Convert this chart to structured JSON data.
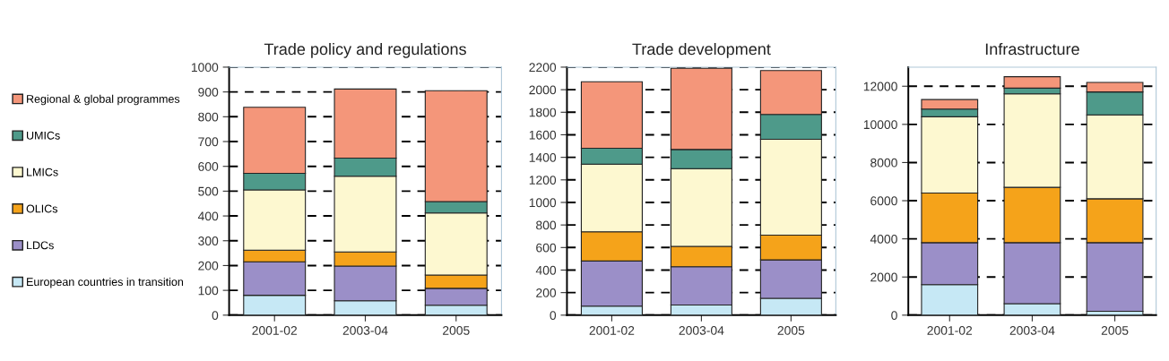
{
  "chart_data": [
    {
      "type": "bar",
      "title": "Trade policy and regulations",
      "categories": [
        "2001-02",
        "2003-04",
        "2005"
      ],
      "stacked": true,
      "ylim": [
        0,
        1000
      ],
      "yticks": [
        0,
        100,
        200,
        300,
        400,
        500,
        600,
        700,
        800,
        900,
        1000
      ],
      "grid": "y",
      "legend": "left",
      "series": [
        {
          "name": "European countries in transition",
          "color": "#c6e8f5",
          "values": [
            80,
            58,
            40
          ]
        },
        {
          "name": "LDCs",
          "color": "#9b8fc8",
          "values": [
            135,
            140,
            68
          ]
        },
        {
          "name": "OLICs",
          "color": "#f5a31a",
          "values": [
            47,
            57,
            54
          ]
        },
        {
          "name": "LMICs",
          "color": "#fdf8d0",
          "values": [
            243,
            305,
            250
          ]
        },
        {
          "name": "UMICs",
          "color": "#4e9a8a",
          "values": [
            67,
            73,
            46
          ]
        },
        {
          "name": "Regional & global programmes",
          "color": "#f4967a",
          "values": [
            266,
            279,
            447
          ]
        }
      ]
    },
    {
      "type": "bar",
      "title": "Trade development",
      "categories": [
        "2001-02",
        "2003-04",
        "2005"
      ],
      "stacked": true,
      "ylim": [
        0,
        2200
      ],
      "yticks": [
        0,
        200,
        400,
        600,
        800,
        1000,
        1200,
        1400,
        1600,
        1800,
        2000,
        2200
      ],
      "grid": "y",
      "series": [
        {
          "color": "#c6e8f5",
          "values": [
            80,
            90,
            150
          ]
        },
        {
          "color": "#9b8fc8",
          "values": [
            400,
            340,
            340
          ]
        },
        {
          "color": "#f5a31a",
          "values": [
            260,
            180,
            220
          ]
        },
        {
          "color": "#fdf8d0",
          "values": [
            600,
            690,
            850
          ]
        },
        {
          "color": "#4e9a8a",
          "values": [
            140,
            170,
            220
          ]
        },
        {
          "color": "#f4967a",
          "values": [
            590,
            720,
            390
          ]
        }
      ]
    },
    {
      "type": "bar",
      "title": "Infrastructure",
      "categories": [
        "2001-02",
        "2003-04",
        "2005"
      ],
      "stacked": true,
      "ylim": [
        0,
        13000
      ],
      "yticks": [
        0,
        2000,
        4000,
        6000,
        8000,
        10000,
        12000
      ],
      "grid": "y",
      "series": [
        {
          "color": "#c6e8f5",
          "values": [
            1600,
            600,
            200
          ]
        },
        {
          "color": "#9b8fc8",
          "values": [
            2200,
            3200,
            3600
          ]
        },
        {
          "color": "#f5a31a",
          "values": [
            2600,
            2900,
            2300
          ]
        },
        {
          "color": "#fdf8d0",
          "values": [
            4000,
            4900,
            4400
          ]
        },
        {
          "color": "#4e9a8a",
          "values": [
            400,
            300,
            1200
          ]
        },
        {
          "color": "#f4967a",
          "values": [
            500,
            600,
            500
          ]
        }
      ]
    }
  ]
}
